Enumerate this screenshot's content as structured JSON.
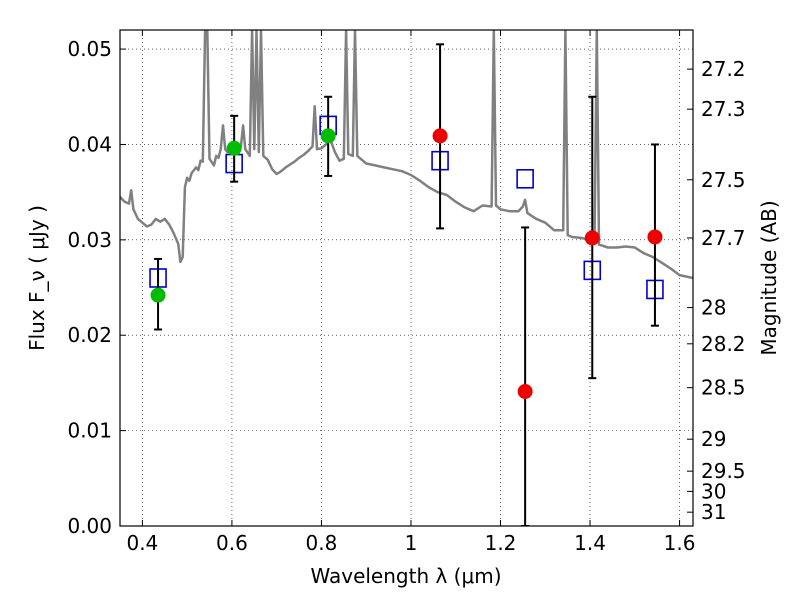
{
  "chart_data": {
    "type": "scatter",
    "xlabel": "Wavelength  λ (μm)",
    "ylabel": "Flux  F_ν  ( μJy )",
    "ylabel_right": "Magnitude (AB)",
    "xlim": [
      0.35,
      1.63
    ],
    "ylim": [
      0.0,
      0.052
    ],
    "x_ticks": [
      0.4,
      0.6,
      0.8,
      1.0,
      1.2,
      1.4,
      1.6
    ],
    "x_tick_labels": [
      "0.4",
      "0.6",
      "0.8",
      "1",
      "1.2",
      "1.4",
      "1.6"
    ],
    "y_ticks": [
      0.0,
      0.01,
      0.02,
      0.03,
      0.04,
      0.05
    ],
    "y_tick_labels": [
      "0.00",
      "0.01",
      "0.02",
      "0.03",
      "0.04",
      "0.05"
    ],
    "right_ticks": [
      {
        "label": "27.2",
        "flux": 0.0479
      },
      {
        "label": "27.3",
        "flux": 0.0437
      },
      {
        "label": "27.5",
        "flux": 0.0363
      },
      {
        "label": "27.7",
        "flux": 0.0302
      },
      {
        "label": "28",
        "flux": 0.0229
      },
      {
        "label": "28.2",
        "flux": 0.0191
      },
      {
        "label": "28.5",
        "flux": 0.0145
      },
      {
        "label": "29",
        "flux": 0.0091
      },
      {
        "label": "29.5",
        "flux": 0.00575
      },
      {
        "label": "30",
        "flux": 0.00363
      },
      {
        "label": "31",
        "flux": 0.00145
      }
    ],
    "grid": true,
    "series": [
      {
        "kind": "line",
        "color": "#808080",
        "points": [
          [
            0.35,
            0.0345
          ],
          [
            0.36,
            0.034
          ],
          [
            0.37,
            0.0338
          ],
          [
            0.375,
            0.0352
          ],
          [
            0.38,
            0.0332
          ],
          [
            0.39,
            0.0322
          ],
          [
            0.4,
            0.0318
          ],
          [
            0.41,
            0.0314
          ],
          [
            0.42,
            0.0316
          ],
          [
            0.43,
            0.0322
          ],
          [
            0.44,
            0.0319
          ],
          [
            0.45,
            0.0322
          ],
          [
            0.46,
            0.0316
          ],
          [
            0.47,
            0.0307
          ],
          [
            0.48,
            0.0296
          ],
          [
            0.485,
            0.0277
          ],
          [
            0.49,
            0.0282
          ],
          [
            0.495,
            0.0355
          ],
          [
            0.5,
            0.0365
          ],
          [
            0.505,
            0.0362
          ],
          [
            0.51,
            0.037
          ],
          [
            0.52,
            0.0376
          ],
          [
            0.525,
            0.0373
          ],
          [
            0.53,
            0.0383
          ],
          [
            0.535,
            0.0382
          ],
          [
            0.54,
            0.052
          ],
          [
            0.545,
            0.052
          ],
          [
            0.55,
            0.0385
          ],
          [
            0.56,
            0.0378
          ],
          [
            0.565,
            0.0388
          ],
          [
            0.57,
            0.0386
          ],
          [
            0.575,
            0.0395
          ],
          [
            0.58,
            0.042
          ],
          [
            0.585,
            0.0395
          ],
          [
            0.59,
            0.0392
          ],
          [
            0.6,
            0.0396
          ],
          [
            0.61,
            0.0392
          ],
          [
            0.62,
            0.0398
          ],
          [
            0.625,
            0.042
          ],
          [
            0.63,
            0.0395
          ],
          [
            0.64,
            0.0388
          ],
          [
            0.645,
            0.052
          ],
          [
            0.65,
            0.0395
          ],
          [
            0.655,
            0.052
          ],
          [
            0.66,
            0.0392
          ],
          [
            0.665,
            0.052
          ],
          [
            0.67,
            0.0388
          ],
          [
            0.68,
            0.0384
          ],
          [
            0.69,
            0.0374
          ],
          [
            0.7,
            0.0369
          ],
          [
            0.71,
            0.0372
          ],
          [
            0.72,
            0.0376
          ],
          [
            0.73,
            0.0379
          ],
          [
            0.74,
            0.0382
          ],
          [
            0.75,
            0.0386
          ],
          [
            0.76,
            0.0389
          ],
          [
            0.77,
            0.0393
          ],
          [
            0.78,
            0.0398
          ],
          [
            0.785,
            0.044
          ],
          [
            0.79,
            0.0395
          ],
          [
            0.8,
            0.0396
          ],
          [
            0.81,
            0.04
          ],
          [
            0.82,
            0.0405
          ],
          [
            0.83,
            0.0392
          ],
          [
            0.84,
            0.0383
          ],
          [
            0.85,
            0.0385
          ],
          [
            0.855,
            0.052
          ],
          [
            0.86,
            0.039
          ],
          [
            0.87,
            0.0388
          ],
          [
            0.875,
            0.052
          ],
          [
            0.88,
            0.0388
          ],
          [
            0.89,
            0.0384
          ],
          [
            0.9,
            0.038
          ],
          [
            0.92,
            0.0378
          ],
          [
            0.94,
            0.0376
          ],
          [
            0.96,
            0.0374
          ],
          [
            0.98,
            0.0372
          ],
          [
            1.0,
            0.0368
          ],
          [
            1.02,
            0.0362
          ],
          [
            1.04,
            0.0355
          ],
          [
            1.06,
            0.035
          ],
          [
            1.08,
            0.0347
          ],
          [
            1.1,
            0.034
          ],
          [
            1.12,
            0.0334
          ],
          [
            1.14,
            0.033
          ],
          [
            1.16,
            0.0336
          ],
          [
            1.18,
            0.0335
          ],
          [
            1.185,
            0.052
          ],
          [
            1.19,
            0.0336
          ],
          [
            1.2,
            0.0332
          ],
          [
            1.22,
            0.033
          ],
          [
            1.24,
            0.033
          ],
          [
            1.25,
            0.0335
          ],
          [
            1.255,
            0.0342
          ],
          [
            1.26,
            0.0328
          ],
          [
            1.28,
            0.0322
          ],
          [
            1.3,
            0.0318
          ],
          [
            1.32,
            0.031
          ],
          [
            1.34,
            0.031
          ],
          [
            1.345,
            0.052
          ],
          [
            1.35,
            0.0305
          ],
          [
            1.36,
            0.0303
          ],
          [
            1.38,
            0.0302
          ],
          [
            1.4,
            0.03
          ],
          [
            1.41,
            0.0298
          ],
          [
            1.415,
            0.052
          ],
          [
            1.42,
            0.0295
          ],
          [
            1.44,
            0.0292
          ],
          [
            1.46,
            0.0292
          ],
          [
            1.48,
            0.0293
          ],
          [
            1.5,
            0.0292
          ],
          [
            1.52,
            0.0286
          ],
          [
            1.54,
            0.0282
          ],
          [
            1.56,
            0.0276
          ],
          [
            1.58,
            0.027
          ],
          [
            1.6,
            0.0263
          ],
          [
            1.63,
            0.026
          ]
        ]
      },
      {
        "kind": "open-square",
        "color": "#0000cc",
        "points": [
          [
            0.435,
            0.026
          ],
          [
            0.605,
            0.038
          ],
          [
            0.815,
            0.042
          ],
          [
            1.065,
            0.0383
          ],
          [
            1.255,
            0.0364
          ],
          [
            1.405,
            0.0268
          ],
          [
            1.545,
            0.0248
          ]
        ]
      },
      {
        "kind": "filled-circle",
        "color": "#00bb00",
        "points": [
          [
            0.435,
            0.0242,
            0.0206,
            0.028
          ],
          [
            0.605,
            0.0396,
            0.0361,
            0.043
          ],
          [
            0.815,
            0.0409,
            0.0367,
            0.045
          ]
        ]
      },
      {
        "kind": "filled-circle",
        "color": "#ee0000",
        "points": [
          [
            1.065,
            0.0409,
            0.0312,
            0.0505
          ],
          [
            1.255,
            0.0141,
            0.0,
            0.0313
          ],
          [
            1.405,
            0.0302,
            0.0155,
            0.045
          ],
          [
            1.545,
            0.0303,
            0.021,
            0.04
          ]
        ]
      }
    ]
  }
}
